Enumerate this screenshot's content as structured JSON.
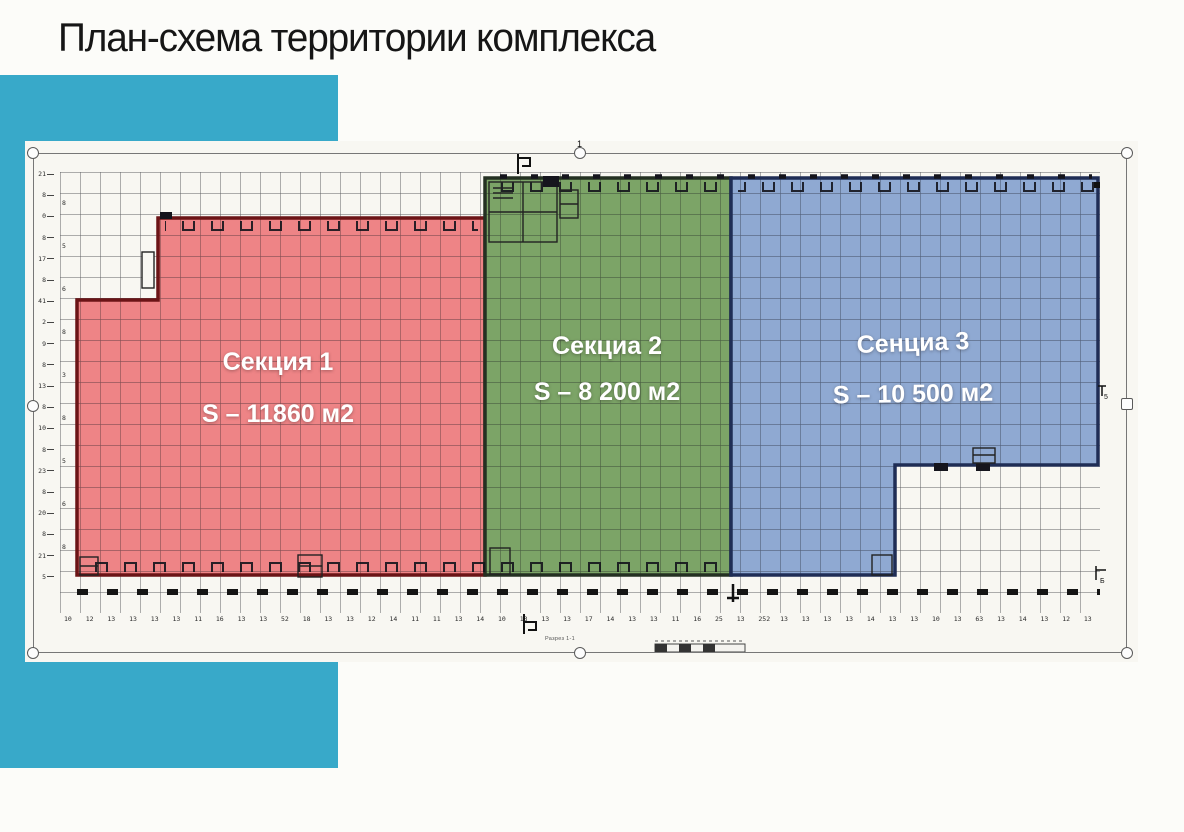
{
  "slide": {
    "title": "План-схема территории комплекса",
    "accent_color": "#38a9c9"
  },
  "plan": {
    "sections": [
      {
        "id": "section-1",
        "name": "Секция 1",
        "area": "S – 11860 м2",
        "fill": "#ee8486",
        "border": "#6b1416"
      },
      {
        "id": "section-2",
        "name": "Секциа 2",
        "area": "S – 8 200 м2",
        "fill": "#7ca467",
        "border": "#243022"
      },
      {
        "id": "section-3",
        "name": "Сенциа 3",
        "area": "S – 10 500 м2",
        "fill": "#8fa9d2",
        "border": "#1f2d55"
      }
    ],
    "marks": {
      "top_section_mark": "1",
      "right_mark": "5",
      "bottom_right_mark": "Б",
      "caption": "Разрез 1-1"
    },
    "bottom_ticks": [
      "10",
      "12",
      "13",
      "13",
      "13",
      "13",
      "11",
      "16",
      "13",
      "13",
      "52",
      "18",
      "13",
      "13",
      "12",
      "14",
      "11",
      "11",
      "13",
      "14",
      "10",
      "13",
      "13",
      "13",
      "17",
      "14",
      "13",
      "13",
      "11",
      "16",
      "25",
      "13",
      "252",
      "13",
      "13",
      "13",
      "13",
      "14",
      "13",
      "13",
      "10",
      "13",
      "63",
      "13",
      "14",
      "13",
      "12",
      "13"
    ],
    "left_ticks": [
      "21",
      "8",
      "0",
      "8",
      "17",
      "8",
      "41",
      "2",
      "9",
      "8",
      "13",
      "8",
      "10",
      "8",
      "23",
      "8",
      "20",
      "8",
      "21",
      "5"
    ],
    "left_inner_ticks": [
      "8",
      "5",
      "6",
      "8",
      "3",
      "8",
      "5",
      "6",
      "8"
    ]
  }
}
